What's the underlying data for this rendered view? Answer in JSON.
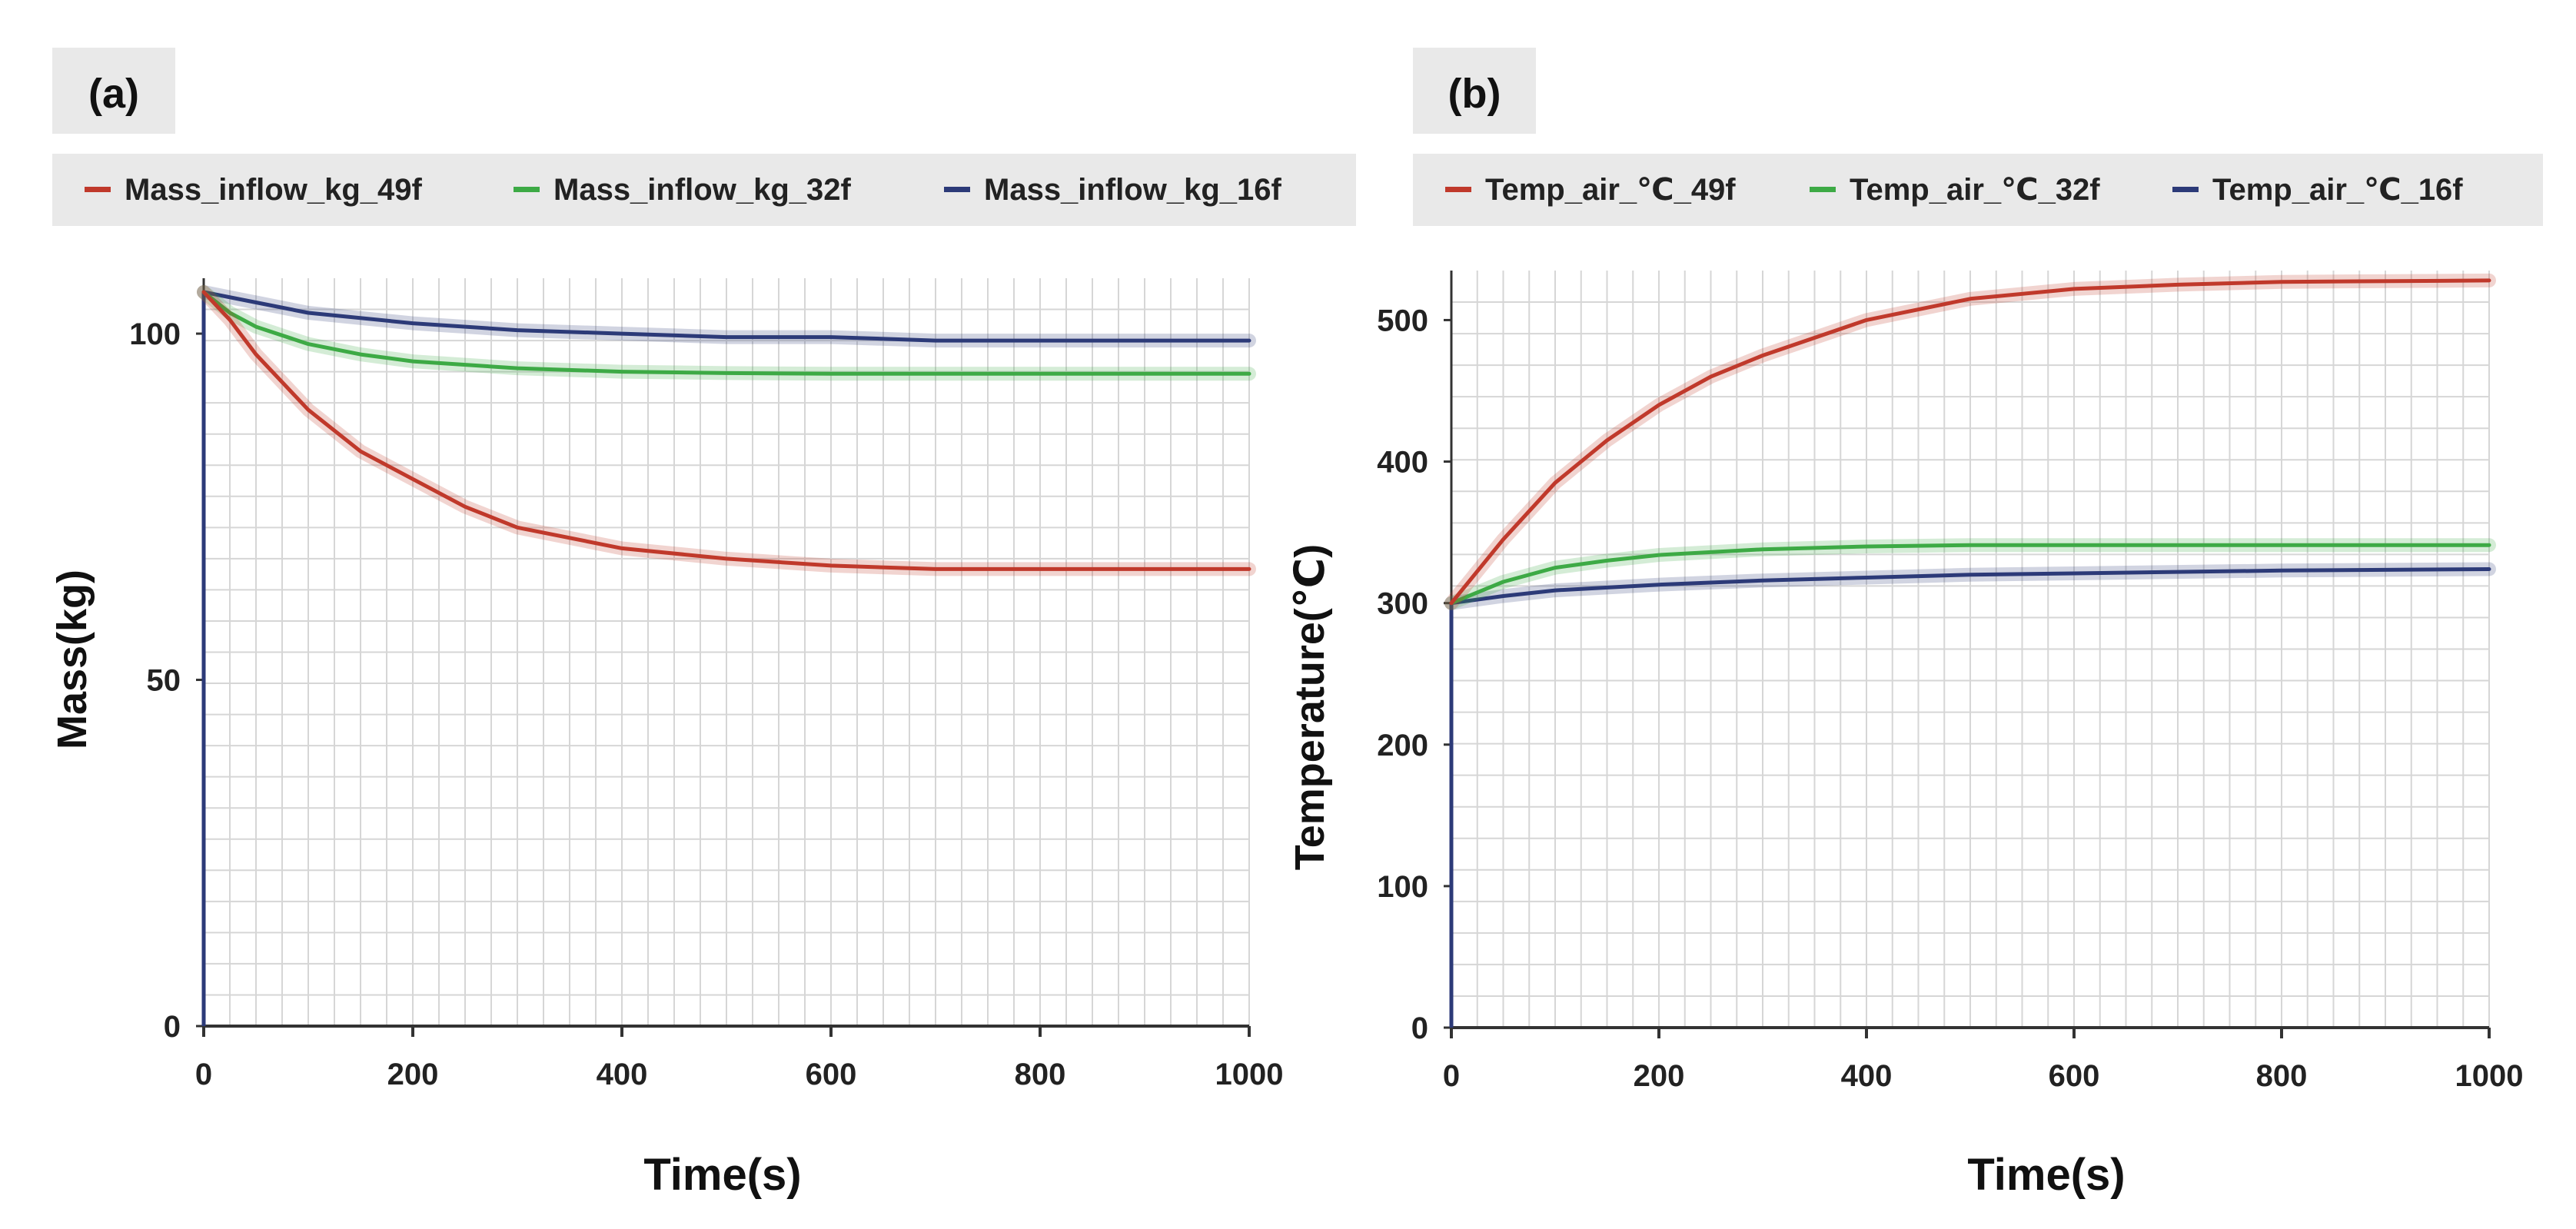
{
  "colors": {
    "red": "#c0392b",
    "green": "#3daa45",
    "navy": "#2c3a78",
    "legend_bg": "#e9e9e9",
    "grid": "#d6d6d6"
  },
  "chart_data": [
    {
      "panel_label": "(a)",
      "type": "line",
      "xlabel": "Time(s)",
      "ylabel": "Mass(kg)",
      "xlim": [
        0,
        1000
      ],
      "ylim": [
        0,
        108
      ],
      "xticks": [
        "0",
        "200",
        "400",
        "600",
        "800",
        "1000"
      ],
      "yticks": [
        {
          "value": 0,
          "label": "0"
        },
        {
          "value": 50,
          "label": "50"
        },
        {
          "value": 100,
          "label": "100"
        }
      ],
      "grid": true,
      "legend_position": "top",
      "series": [
        {
          "name": "Mass_inflow_kg_49f",
          "color": "#c0392b",
          "x": [
            0,
            25,
            50,
            100,
            150,
            200,
            250,
            300,
            400,
            500,
            600,
            700,
            800,
            1000
          ],
          "y": [
            106,
            102,
            97,
            89,
            83,
            79,
            75,
            72,
            69,
            67.5,
            66.5,
            66,
            66,
            66
          ]
        },
        {
          "name": "Mass_inflow_kg_32f",
          "color": "#3daa45",
          "x": [
            0,
            25,
            50,
            100,
            150,
            200,
            300,
            400,
            500,
            600,
            800,
            1000
          ],
          "y": [
            106,
            103,
            101,
            98.5,
            97,
            96,
            95,
            94.5,
            94.3,
            94.2,
            94.2,
            94.2
          ]
        },
        {
          "name": "Mass_inflow_kg_16f",
          "color": "#2c3a78",
          "x": [
            0,
            50,
            100,
            200,
            300,
            400,
            500,
            600,
            700,
            800,
            1000
          ],
          "y": [
            106,
            104.5,
            103,
            101.5,
            100.5,
            100,
            99.5,
            99.5,
            99,
            99,
            99
          ]
        }
      ]
    },
    {
      "panel_label": "(b)",
      "type": "line",
      "xlabel": "Time(s)",
      "ylabel": "Temperature(℃)",
      "xlim": [
        0,
        1000
      ],
      "ylim": [
        0,
        535
      ],
      "xticks": [
        "0",
        "200",
        "400",
        "600",
        "800",
        "1000"
      ],
      "yticks": [
        {
          "value": 0,
          "label": "0"
        },
        {
          "value": 100,
          "label": "100"
        },
        {
          "value": 200,
          "label": "200"
        },
        {
          "value": 300,
          "label": "300"
        },
        {
          "value": 400,
          "label": "400"
        },
        {
          "value": 500,
          "label": "500"
        }
      ],
      "grid": true,
      "legend_position": "top",
      "series": [
        {
          "name": "Temp_air_℃_49f",
          "color": "#c0392b",
          "x": [
            0,
            50,
            100,
            150,
            200,
            250,
            300,
            400,
            500,
            600,
            700,
            800,
            1000
          ],
          "y": [
            300,
            345,
            385,
            415,
            440,
            460,
            475,
            500,
            515,
            522,
            525,
            527,
            528
          ]
        },
        {
          "name": "Temp_air_℃_32f",
          "color": "#3daa45",
          "x": [
            0,
            50,
            100,
            150,
            200,
            300,
            400,
            500,
            600,
            800,
            1000
          ],
          "y": [
            300,
            315,
            325,
            330,
            334,
            338,
            340,
            341,
            341,
            341,
            341
          ]
        },
        {
          "name": "Temp_air_℃_16f",
          "color": "#2c3a78",
          "x": [
            0,
            50,
            100,
            200,
            300,
            400,
            500,
            600,
            800,
            1000
          ],
          "y": [
            300,
            305,
            309,
            313,
            316,
            318,
            320,
            321,
            323,
            324
          ]
        }
      ]
    }
  ]
}
